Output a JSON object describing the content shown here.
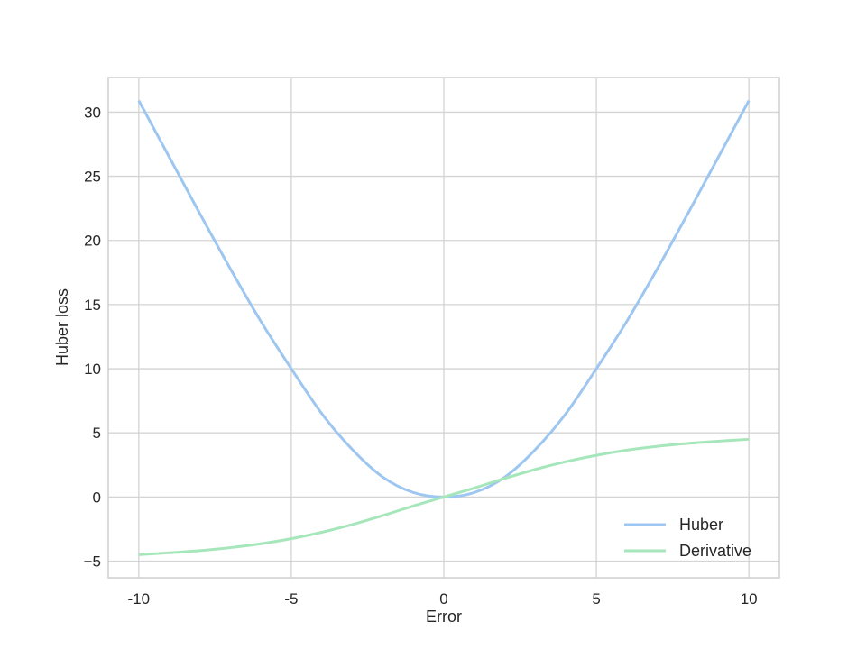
{
  "chart_data": {
    "type": "line",
    "title": "",
    "xlabel": "Error",
    "ylabel": "Huber loss",
    "xlim": [
      -11,
      11
    ],
    "ylim": [
      -6.3,
      32.7
    ],
    "grid": true,
    "legend_position": "bottom-right",
    "x_ticks": [
      -10,
      -5,
      0,
      5,
      10
    ],
    "x_tick_labels": [
      "-10",
      "-5",
      "0",
      "5",
      "10"
    ],
    "y_ticks": [
      -5,
      0,
      5,
      10,
      15,
      20,
      25,
      30
    ],
    "y_tick_labels": [
      "−5",
      "0",
      "5",
      "10",
      "15",
      "20",
      "25",
      "30"
    ],
    "x": [
      -10,
      -9,
      -8,
      -7,
      -6,
      -5,
      -4,
      -3,
      -2,
      -1,
      0,
      1,
      2,
      3,
      4,
      5,
      6,
      7,
      8,
      9,
      10
    ],
    "series": [
      {
        "name": "Huber",
        "color": "#9dc6f0",
        "values": [
          30.9,
          26.5,
          22.1,
          17.8,
          13.7,
          10.0,
          6.5,
          3.7,
          1.55,
          0.35,
          0.0,
          0.35,
          1.55,
          3.7,
          6.5,
          10.0,
          13.7,
          17.8,
          22.1,
          26.5,
          30.9
        ]
      },
      {
        "name": "Derivative",
        "color": "#a6e6bb",
        "values": [
          -4.5,
          -4.35,
          -4.18,
          -3.95,
          -3.65,
          -3.25,
          -2.75,
          -2.15,
          -1.45,
          -0.7,
          0.0,
          0.7,
          1.45,
          2.15,
          2.75,
          3.25,
          3.65,
          3.95,
          4.18,
          4.35,
          4.5
        ]
      }
    ]
  }
}
